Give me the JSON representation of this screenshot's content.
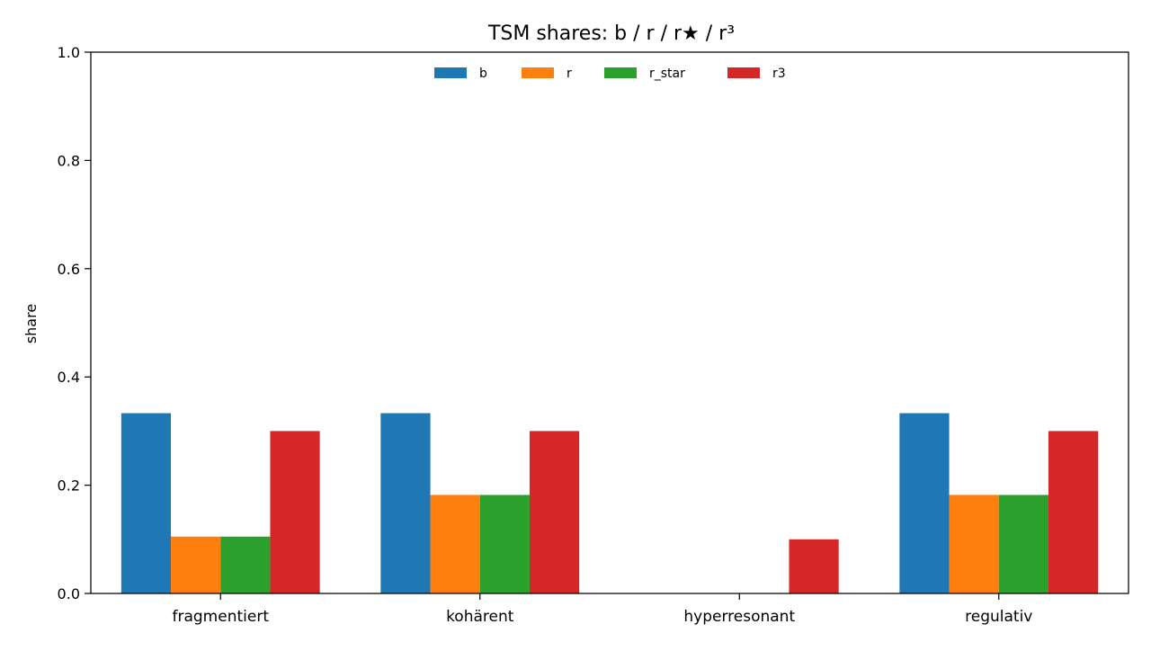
{
  "chart_data": {
    "type": "bar",
    "title": "TSM shares: b / r / r★ / r³",
    "xlabel": "",
    "ylabel": "share",
    "ylim": [
      0,
      1.0
    ],
    "yticks": [
      "0.0",
      "0.2",
      "0.4",
      "0.6",
      "0.8",
      "1.0"
    ],
    "categories": [
      "fragmentiert",
      "kohärent",
      "hyperresonant",
      "regulativ"
    ],
    "legend_position": "top-center",
    "grid": false,
    "series": [
      {
        "name": "b",
        "color": "#1f77b4",
        "values": [
          0.333,
          0.333,
          0.0,
          0.333
        ]
      },
      {
        "name": "r",
        "color": "#ff7f0e",
        "values": [
          0.105,
          0.182,
          0.0,
          0.182
        ]
      },
      {
        "name": "r_star",
        "color": "#2ca02c",
        "values": [
          0.105,
          0.182,
          0.0,
          0.182
        ]
      },
      {
        "name": "r3",
        "color": "#d62728",
        "values": [
          0.3,
          0.3,
          0.1,
          0.3
        ]
      }
    ]
  }
}
